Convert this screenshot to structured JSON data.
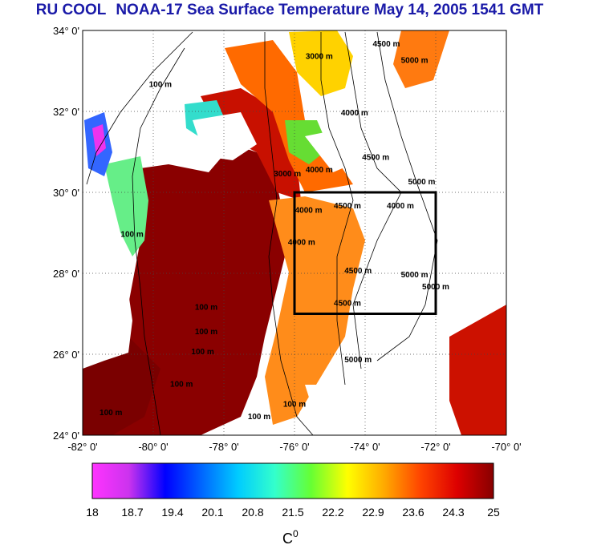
{
  "title": {
    "org": "RU COOL",
    "text": "NOAA-17 Sea Surface Temperature May 14, 2005 1541 GMT"
  },
  "map": {
    "lat_ticks": [
      "34° 0'",
      "32° 0'",
      "30° 0'",
      "28° 0'",
      "26° 0'",
      "24° 0'"
    ],
    "lat_values": [
      34,
      32,
      30,
      28,
      26,
      24
    ],
    "lon_ticks": [
      "-82° 0'",
      "-80° 0'",
      "-78° 0'",
      "-76° 0'",
      "-74° 0'",
      "-72° 0'",
      "-70° 0'"
    ],
    "lon_values": [
      -82,
      -80,
      -78,
      -76,
      -74,
      -72,
      -70
    ],
    "lat_range": [
      24,
      34
    ],
    "lon_range": [
      -82,
      -70
    ],
    "study_box": {
      "lon": [
        -76,
        -72
      ],
      "lat": [
        27,
        30
      ]
    },
    "contour_labels": [
      {
        "text": "4500 m",
        "lon": -73.4,
        "lat": 33.6
      },
      {
        "text": "5000 m",
        "lon": -72.6,
        "lat": 33.2
      },
      {
        "text": "3000 m",
        "lon": -75.3,
        "lat": 33.3
      },
      {
        "text": "4000 m",
        "lon": -74.3,
        "lat": 31.9
      },
      {
        "text": "100 m",
        "lon": -79.8,
        "lat": 32.6
      },
      {
        "text": "4000 m",
        "lon": -75.3,
        "lat": 30.5
      },
      {
        "text": "4500 m",
        "lon": -73.7,
        "lat": 30.8
      },
      {
        "text": "5000 m",
        "lon": -72.4,
        "lat": 30.2
      },
      {
        "text": "3000 m",
        "lon": -76.2,
        "lat": 30.4
      },
      {
        "text": "4500 m",
        "lon": -74.5,
        "lat": 29.6
      },
      {
        "text": "4000 m",
        "lon": -73.0,
        "lat": 29.6
      },
      {
        "text": "4000 m",
        "lon": -75.6,
        "lat": 29.5
      },
      {
        "text": "100 m",
        "lon": -80.6,
        "lat": 28.9
      },
      {
        "text": "4000 m",
        "lon": -75.8,
        "lat": 28.7
      },
      {
        "text": "4500 m",
        "lon": -74.2,
        "lat": 28.0
      },
      {
        "text": "5000 m",
        "lon": -72.6,
        "lat": 27.9
      },
      {
        "text": "5000 m",
        "lon": -72.0,
        "lat": 27.6
      },
      {
        "text": "4500 m",
        "lon": -74.5,
        "lat": 27.2
      },
      {
        "text": "100 m",
        "lon": -78.5,
        "lat": 27.1
      },
      {
        "text": "100 m",
        "lon": -78.5,
        "lat": 26.5
      },
      {
        "text": "100 m",
        "lon": -78.6,
        "lat": 26.0
      },
      {
        "text": "5000 m",
        "lon": -74.2,
        "lat": 25.8
      },
      {
        "text": "100 m",
        "lon": -79.2,
        "lat": 25.2
      },
      {
        "text": "100 m",
        "lon": -81.2,
        "lat": 24.5
      },
      {
        "text": "100 m",
        "lon": -76.0,
        "lat": 24.7
      },
      {
        "text": "100 m",
        "lon": -77.0,
        "lat": 24.4
      }
    ]
  },
  "colorbar": {
    "ticks": [
      "18",
      "18.7",
      "19.4",
      "20.1",
      "20.8",
      "21.5",
      "22.2",
      "22.9",
      "23.6",
      "24.3",
      "25"
    ],
    "range": [
      18,
      25
    ],
    "unit": "C",
    "unit_superscript": "0",
    "colors": [
      "#ff33ff",
      "#cc33ee",
      "#0000ff",
      "#0066ff",
      "#00ccff",
      "#33ffcc",
      "#66ff33",
      "#ffff00",
      "#ffaa00",
      "#ff4400",
      "#dd0000",
      "#880000"
    ]
  },
  "colors": {
    "title": "#1a1aa8",
    "box": "#000000",
    "land": "#ffffff",
    "cloud": "#ffffff"
  }
}
